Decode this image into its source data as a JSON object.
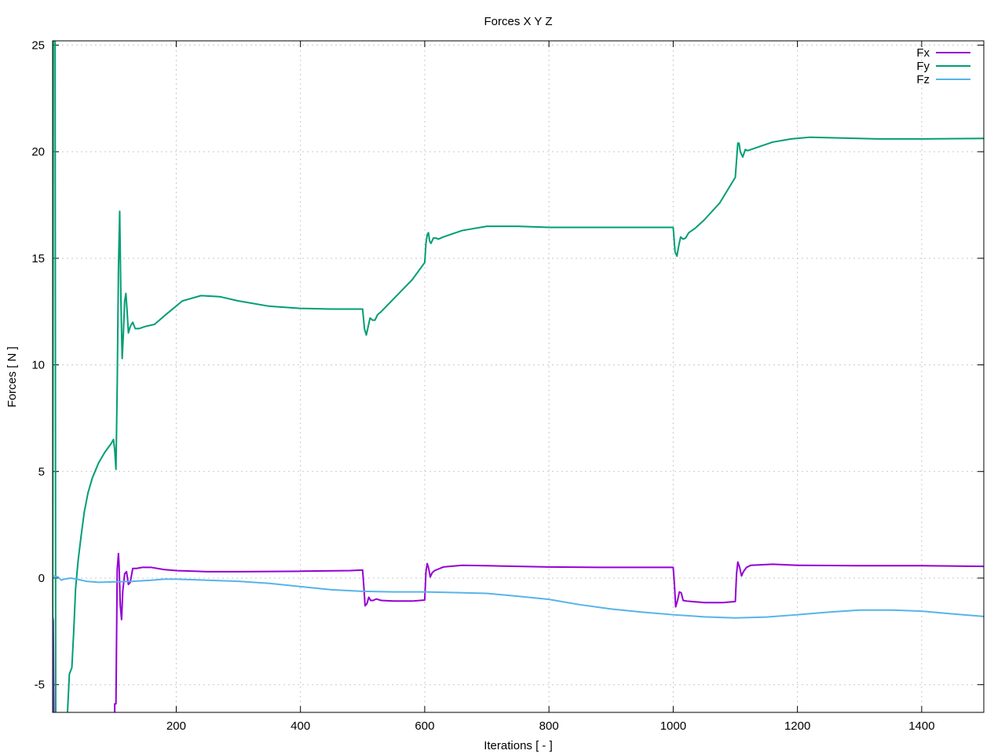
{
  "chart_data": {
    "type": "line",
    "title": "Forces X Y Z",
    "xlabel": "Iterations [ - ]",
    "ylabel": "Forces [ N ]",
    "xlim": [
      1,
      1500
    ],
    "ylim": [
      -6.3,
      25.2
    ],
    "x_ticks": [
      200,
      400,
      600,
      800,
      1000,
      1200,
      1400
    ],
    "y_ticks": [
      -5,
      0,
      5,
      10,
      15,
      20,
      25
    ],
    "grid": true,
    "legend_position": "top-right",
    "series": [
      {
        "name": "Fx",
        "color": "#9400d3",
        "points": [
          [
            1,
            -6.3
          ],
          [
            1,
            -1.8
          ],
          [
            2,
            -2.0
          ],
          [
            3,
            -6.3
          ],
          [
            null,
            null
          ],
          [
            101,
            -6.3
          ],
          [
            101,
            -5.9
          ],
          [
            103,
            -5.9
          ],
          [
            105,
            0.4
          ],
          [
            107,
            1.15
          ],
          [
            108,
            0.6
          ],
          [
            110,
            -1.3
          ],
          [
            112,
            -1.95
          ],
          [
            114,
            -0.6
          ],
          [
            117,
            0.2
          ],
          [
            120,
            0.3
          ],
          [
            123,
            -0.3
          ],
          [
            126,
            -0.2
          ],
          [
            130,
            0.45
          ],
          [
            136,
            0.45
          ],
          [
            145,
            0.5
          ],
          [
            160,
            0.5
          ],
          [
            180,
            0.4
          ],
          [
            200,
            0.35
          ],
          [
            250,
            0.3
          ],
          [
            300,
            0.3
          ],
          [
            400,
            0.32
          ],
          [
            480,
            0.35
          ],
          [
            500,
            0.38
          ],
          [
            502,
            -0.4
          ],
          [
            504,
            -1.3
          ],
          [
            507,
            -1.2
          ],
          [
            510,
            -0.9
          ],
          [
            513,
            -1.05
          ],
          [
            517,
            -1.05
          ],
          [
            522,
            -0.98
          ],
          [
            530,
            -1.05
          ],
          [
            550,
            -1.08
          ],
          [
            580,
            -1.08
          ],
          [
            600,
            -1.03
          ],
          [
            602,
            0.3
          ],
          [
            604,
            0.68
          ],
          [
            606,
            0.5
          ],
          [
            609,
            0.05
          ],
          [
            612,
            0.25
          ],
          [
            616,
            0.35
          ],
          [
            620,
            0.4
          ],
          [
            630,
            0.52
          ],
          [
            660,
            0.6
          ],
          [
            700,
            0.58
          ],
          [
            800,
            0.52
          ],
          [
            900,
            0.5
          ],
          [
            1000,
            0.5
          ],
          [
            1002,
            -0.3
          ],
          [
            1004,
            -1.35
          ],
          [
            1007,
            -1.05
          ],
          [
            1010,
            -0.65
          ],
          [
            1013,
            -0.7
          ],
          [
            1016,
            -1.05
          ],
          [
            1022,
            -1.08
          ],
          [
            1030,
            -1.1
          ],
          [
            1050,
            -1.15
          ],
          [
            1080,
            -1.15
          ],
          [
            1100,
            -1.1
          ],
          [
            1102,
            0.2
          ],
          [
            1104,
            0.75
          ],
          [
            1107,
            0.5
          ],
          [
            1110,
            0.1
          ],
          [
            1113,
            0.3
          ],
          [
            1118,
            0.5
          ],
          [
            1125,
            0.6
          ],
          [
            1160,
            0.65
          ],
          [
            1200,
            0.6
          ],
          [
            1300,
            0.58
          ],
          [
            1400,
            0.58
          ],
          [
            1500,
            0.55
          ]
        ]
      },
      {
        "name": "Fy",
        "color": "#009e73",
        "points": [
          [
            1,
            -6.3
          ],
          [
            2,
            25.2
          ],
          [
            null,
            null
          ],
          [
            5,
            25.2
          ],
          [
            6,
            -6.3
          ],
          [
            null,
            null
          ],
          [
            25,
            -6.3
          ],
          [
            28,
            -4.5
          ],
          [
            32,
            -4.2
          ],
          [
            35,
            -2.5
          ],
          [
            38,
            -0.5
          ],
          [
            42,
            0.8
          ],
          [
            47,
            2.0
          ],
          [
            52,
            3.1
          ],
          [
            58,
            4.0
          ],
          [
            65,
            4.7
          ],
          [
            75,
            5.4
          ],
          [
            85,
            5.9
          ],
          [
            95,
            6.3
          ],
          [
            99,
            6.5
          ],
          [
            101,
            6.0
          ],
          [
            103,
            5.1
          ],
          [
            105,
            9.0
          ],
          [
            107,
            14.5
          ],
          [
            109,
            17.2
          ],
          [
            111,
            13.0
          ],
          [
            113,
            10.3
          ],
          [
            115,
            11.5
          ],
          [
            117,
            13.0
          ],
          [
            119,
            13.35
          ],
          [
            121,
            12.5
          ],
          [
            123,
            11.5
          ],
          [
            126,
            11.8
          ],
          [
            130,
            12.0
          ],
          [
            134,
            11.7
          ],
          [
            140,
            11.7
          ],
          [
            150,
            11.8
          ],
          [
            165,
            11.9
          ],
          [
            185,
            12.4
          ],
          [
            210,
            13.0
          ],
          [
            240,
            13.25
          ],
          [
            270,
            13.2
          ],
          [
            300,
            13.0
          ],
          [
            350,
            12.75
          ],
          [
            400,
            12.65
          ],
          [
            450,
            12.62
          ],
          [
            500,
            12.62
          ],
          [
            503,
            11.7
          ],
          [
            506,
            11.4
          ],
          [
            509,
            11.8
          ],
          [
            512,
            12.2
          ],
          [
            516,
            12.1
          ],
          [
            520,
            12.1
          ],
          [
            524,
            12.35
          ],
          [
            530,
            12.5
          ],
          [
            540,
            12.8
          ],
          [
            560,
            13.4
          ],
          [
            580,
            14.0
          ],
          [
            600,
            14.8
          ],
          [
            602,
            15.7
          ],
          [
            604,
            16.1
          ],
          [
            606,
            16.2
          ],
          [
            608,
            15.8
          ],
          [
            610,
            15.7
          ],
          [
            614,
            15.95
          ],
          [
            618,
            15.95
          ],
          [
            622,
            15.9
          ],
          [
            630,
            16.0
          ],
          [
            660,
            16.3
          ],
          [
            700,
            16.5
          ],
          [
            750,
            16.5
          ],
          [
            800,
            16.45
          ],
          [
            900,
            16.45
          ],
          [
            1000,
            16.45
          ],
          [
            1003,
            15.3
          ],
          [
            1006,
            15.1
          ],
          [
            1009,
            15.6
          ],
          [
            1012,
            16.0
          ],
          [
            1016,
            15.9
          ],
          [
            1020,
            15.95
          ],
          [
            1025,
            16.2
          ],
          [
            1035,
            16.4
          ],
          [
            1050,
            16.8
          ],
          [
            1075,
            17.6
          ],
          [
            1100,
            18.8
          ],
          [
            1102,
            19.6
          ],
          [
            1104,
            20.4
          ],
          [
            1106,
            20.4
          ],
          [
            1108,
            20.0
          ],
          [
            1112,
            19.75
          ],
          [
            1116,
            20.1
          ],
          [
            1120,
            20.05
          ],
          [
            1125,
            20.1
          ],
          [
            1135,
            20.2
          ],
          [
            1160,
            20.45
          ],
          [
            1190,
            20.6
          ],
          [
            1220,
            20.68
          ],
          [
            1260,
            20.65
          ],
          [
            1330,
            20.6
          ],
          [
            1400,
            20.6
          ],
          [
            1500,
            20.62
          ]
        ]
      },
      {
        "name": "Fz",
        "color": "#56b4e9",
        "points": [
          [
            1,
            0.1
          ],
          [
            5,
            0.08
          ],
          [
            10,
            0.05
          ],
          [
            15,
            -0.1
          ],
          [
            20,
            -0.05
          ],
          [
            30,
            0.0
          ],
          [
            40,
            -0.05
          ],
          [
            55,
            -0.15
          ],
          [
            75,
            -0.2
          ],
          [
            100,
            -0.18
          ],
          [
            130,
            -0.15
          ],
          [
            160,
            -0.1
          ],
          [
            180,
            -0.05
          ],
          [
            200,
            -0.05
          ],
          [
            250,
            -0.1
          ],
          [
            300,
            -0.15
          ],
          [
            350,
            -0.25
          ],
          [
            400,
            -0.4
          ],
          [
            450,
            -0.55
          ],
          [
            500,
            -0.62
          ],
          [
            550,
            -0.65
          ],
          [
            600,
            -0.65
          ],
          [
            650,
            -0.68
          ],
          [
            700,
            -0.72
          ],
          [
            750,
            -0.85
          ],
          [
            800,
            -1.0
          ],
          [
            850,
            -1.25
          ],
          [
            900,
            -1.45
          ],
          [
            950,
            -1.6
          ],
          [
            1000,
            -1.72
          ],
          [
            1050,
            -1.82
          ],
          [
            1100,
            -1.87
          ],
          [
            1150,
            -1.83
          ],
          [
            1200,
            -1.72
          ],
          [
            1250,
            -1.6
          ],
          [
            1300,
            -1.5
          ],
          [
            1350,
            -1.5
          ],
          [
            1400,
            -1.55
          ],
          [
            1450,
            -1.68
          ],
          [
            1500,
            -1.8
          ]
        ]
      }
    ]
  }
}
